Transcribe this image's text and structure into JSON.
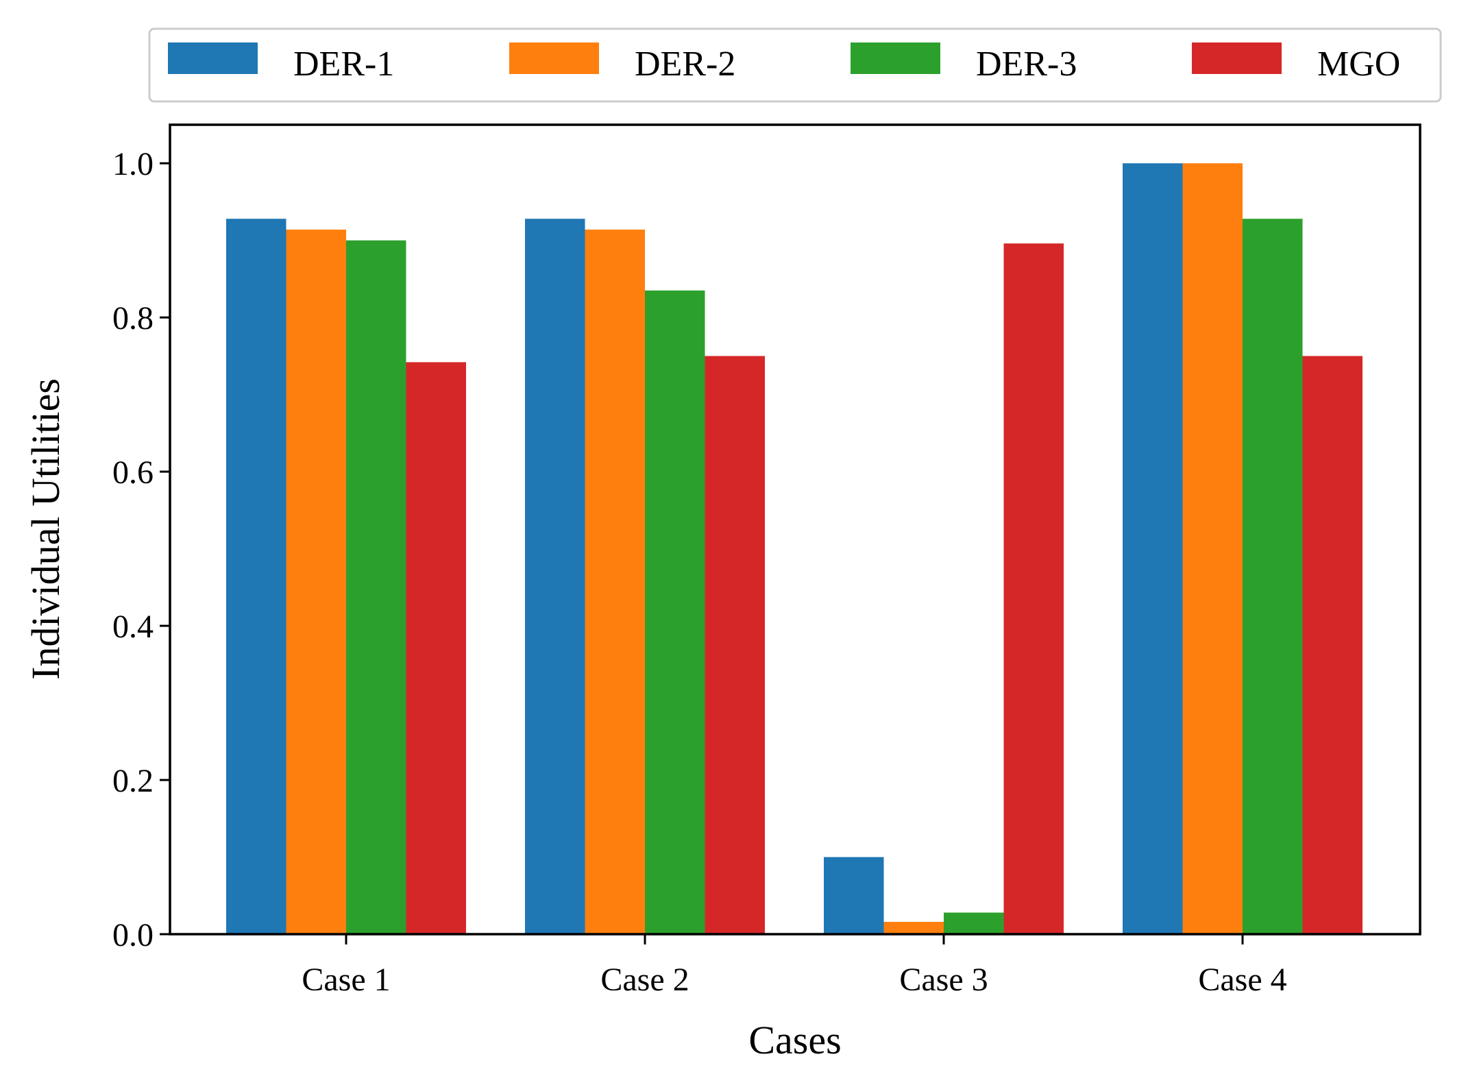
{
  "chart_data": {
    "type": "bar",
    "title": "",
    "xlabel": "Cases",
    "ylabel": "Individual Utilities",
    "categories": [
      "Case 1",
      "Case 2",
      "Case 3",
      "Case 4"
    ],
    "series": [
      {
        "name": "DER-1",
        "color": "#1f77b4",
        "values": [
          0.928,
          0.928,
          0.1,
          1.0
        ]
      },
      {
        "name": "DER-2",
        "color": "#ff7f0e",
        "values": [
          0.914,
          0.914,
          0.016,
          1.0
        ]
      },
      {
        "name": "DER-3",
        "color": "#2ca02c",
        "values": [
          0.9,
          0.835,
          0.028,
          0.928
        ]
      },
      {
        "name": "MGO",
        "color": "#d62728",
        "values": [
          0.742,
          0.75,
          0.896,
          0.75
        ]
      }
    ],
    "ylim": [
      0,
      1.05
    ],
    "yticks": [
      "0.0",
      "0.2",
      "0.4",
      "0.6",
      "0.8",
      "1.0"
    ],
    "grid": false,
    "legend_position": "top, outside plot, single row"
  }
}
